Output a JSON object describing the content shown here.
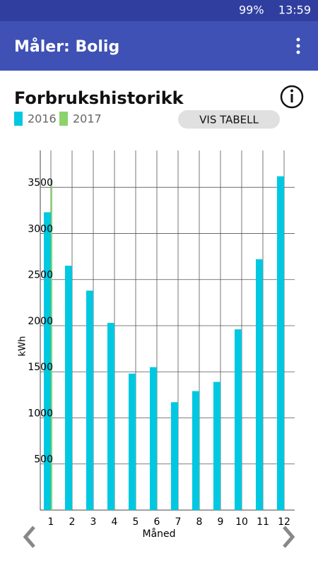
{
  "status_bar": {
    "battery": "99%",
    "time": "13:59"
  },
  "app_bar": {
    "title": "Måler: Bolig"
  },
  "button": "VIS TABELL",
  "chart_data": {
    "type": "bar",
    "title": "Forbrukshistorikk",
    "categories": [
      "1",
      "2",
      "3",
      "4",
      "5",
      "6",
      "7",
      "8",
      "9",
      "10",
      "11",
      "12"
    ],
    "series": [
      {
        "name": "2016",
        "color": "#00c8e0",
        "values": [
          3230,
          2650,
          2380,
          2030,
          1480,
          1550,
          1170,
          1290,
          1390,
          1960,
          2720,
          3620
        ]
      },
      {
        "name": "2017",
        "color": "#8bd36a",
        "values": [
          3540,
          null,
          null,
          null,
          null,
          null,
          null,
          null,
          null,
          null,
          null,
          null
        ]
      }
    ],
    "x_label": "Måned",
    "y_label": "kWh",
    "ylim": [
      0,
      3900
    ],
    "yticks": [
      500,
      1000,
      1500,
      2000,
      2500,
      3000,
      3500
    ],
    "grid": true
  }
}
